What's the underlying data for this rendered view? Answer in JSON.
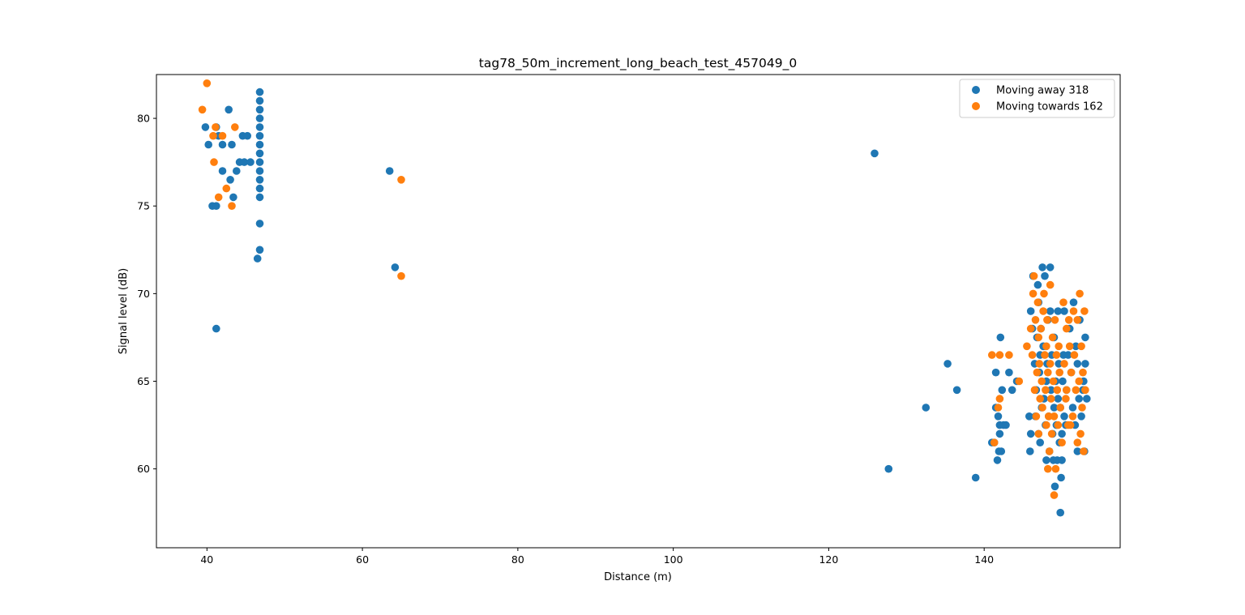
{
  "chart_data": {
    "type": "scatter",
    "title": "tag78_50m_increment_long_beach_test_457049_0",
    "xlabel": "Distance (m)",
    "ylabel": "Signal level (dB)",
    "xlim": [
      33.5,
      157.5
    ],
    "ylim": [
      55.5,
      82.5
    ],
    "xticks": [
      40,
      60,
      80,
      100,
      120,
      140
    ],
    "yticks": [
      60,
      65,
      70,
      75,
      80
    ],
    "grid": false,
    "legend_position": "top-right",
    "series": [
      {
        "name": "Moving away 318",
        "color": "#1f77b4",
        "points": [
          [
            39.8,
            79.5
          ],
          [
            40.2,
            78.5
          ],
          [
            40.7,
            75.0
          ],
          [
            41.2,
            75.0
          ],
          [
            41.2,
            68.0
          ],
          [
            41.5,
            79.0
          ],
          [
            41.2,
            79.5
          ],
          [
            42.0,
            77.0
          ],
          [
            42.0,
            78.5
          ],
          [
            42.8,
            80.5
          ],
          [
            43.0,
            76.5
          ],
          [
            43.2,
            78.5
          ],
          [
            43.4,
            75.5
          ],
          [
            43.8,
            77.0
          ],
          [
            44.2,
            77.5
          ],
          [
            44.6,
            79.0
          ],
          [
            44.8,
            77.5
          ],
          [
            45.2,
            79.0
          ],
          [
            45.6,
            77.5
          ],
          [
            46.5,
            72.0
          ],
          [
            46.8,
            81.5
          ],
          [
            46.8,
            81.0
          ],
          [
            46.8,
            80.5
          ],
          [
            46.8,
            80.0
          ],
          [
            46.8,
            79.5
          ],
          [
            46.8,
            79.0
          ],
          [
            46.8,
            78.5
          ],
          [
            46.8,
            78.0
          ],
          [
            46.8,
            77.5
          ],
          [
            46.8,
            77.0
          ],
          [
            46.8,
            76.5
          ],
          [
            46.8,
            76.0
          ],
          [
            46.8,
            75.5
          ],
          [
            46.8,
            74.0
          ],
          [
            46.8,
            72.5
          ],
          [
            63.5,
            77.0
          ],
          [
            64.2,
            71.5
          ],
          [
            125.9,
            78.0
          ],
          [
            127.7,
            60.0
          ],
          [
            132.5,
            63.5
          ],
          [
            135.3,
            66.0
          ],
          [
            136.5,
            64.5
          ],
          [
            138.9,
            59.5
          ],
          [
            141.0,
            61.5
          ],
          [
            141.3,
            61.5
          ],
          [
            141.5,
            63.5
          ],
          [
            141.5,
            65.5
          ],
          [
            141.7,
            60.5
          ],
          [
            141.8,
            63.0
          ],
          [
            141.9,
            61.0
          ],
          [
            142.0,
            62.0
          ],
          [
            142.0,
            62.5
          ],
          [
            142.1,
            67.5
          ],
          [
            142.2,
            61.0
          ],
          [
            142.3,
            64.5
          ],
          [
            142.5,
            62.5
          ],
          [
            142.8,
            62.5
          ],
          [
            143.2,
            65.5
          ],
          [
            143.6,
            64.5
          ],
          [
            144.2,
            65.0
          ],
          [
            145.8,
            63.0
          ],
          [
            145.9,
            61.0
          ],
          [
            146.0,
            62.0
          ],
          [
            146.0,
            69.0
          ],
          [
            146.2,
            68.0
          ],
          [
            146.3,
            71.0
          ],
          [
            146.5,
            66.0
          ],
          [
            146.6,
            63.0
          ],
          [
            146.7,
            64.5
          ],
          [
            146.8,
            67.5
          ],
          [
            146.9,
            70.5
          ],
          [
            147.0,
            62.0
          ],
          [
            147.0,
            69.5
          ],
          [
            147.1,
            65.5
          ],
          [
            147.2,
            61.5
          ],
          [
            147.2,
            66.5
          ],
          [
            147.3,
            68.0
          ],
          [
            147.4,
            63.5
          ],
          [
            147.5,
            71.5
          ],
          [
            147.6,
            67.0
          ],
          [
            147.7,
            64.0
          ],
          [
            147.8,
            71.0
          ],
          [
            147.9,
            62.5
          ],
          [
            148.0,
            60.5
          ],
          [
            148.0,
            65.0
          ],
          [
            148.1,
            66.0
          ],
          [
            148.2,
            68.5
          ],
          [
            148.3,
            63.0
          ],
          [
            148.4,
            61.0
          ],
          [
            148.5,
            69.0
          ],
          [
            148.5,
            71.5
          ],
          [
            148.6,
            64.5
          ],
          [
            148.7,
            66.5
          ],
          [
            148.8,
            62.0
          ],
          [
            148.9,
            60.5
          ],
          [
            149.0,
            67.5
          ],
          [
            149.0,
            63.5
          ],
          [
            149.1,
            59.0
          ],
          [
            149.2,
            65.0
          ],
          [
            149.3,
            62.5
          ],
          [
            149.4,
            60.5
          ],
          [
            149.5,
            64.0
          ],
          [
            149.5,
            69.0
          ],
          [
            149.6,
            66.0
          ],
          [
            149.7,
            61.5
          ],
          [
            149.8,
            63.5
          ],
          [
            149.8,
            57.5
          ],
          [
            149.9,
            59.5
          ],
          [
            150.0,
            62.0
          ],
          [
            150.0,
            60.5
          ],
          [
            150.1,
            65.0
          ],
          [
            150.2,
            66.5
          ],
          [
            150.3,
            63.0
          ],
          [
            150.3,
            69.0
          ],
          [
            150.5,
            62.5
          ],
          [
            150.6,
            64.5
          ],
          [
            150.8,
            66.5
          ],
          [
            151.0,
            68.0
          ],
          [
            151.2,
            65.5
          ],
          [
            151.4,
            63.5
          ],
          [
            151.5,
            69.5
          ],
          [
            151.7,
            62.5
          ],
          [
            151.8,
            67.0
          ],
          [
            152.0,
            61.0
          ],
          [
            152.0,
            66.0
          ],
          [
            152.2,
            64.0
          ],
          [
            152.3,
            68.5
          ],
          [
            152.5,
            63.0
          ],
          [
            152.7,
            64.5
          ],
          [
            152.9,
            61.0
          ],
          [
            153.0,
            66.0
          ],
          [
            153.2,
            64.0
          ],
          [
            153.0,
            67.5
          ],
          [
            152.8,
            65.0
          ]
        ]
      },
      {
        "name": "Moving towards 162",
        "color": "#ff7f0e",
        "points": [
          [
            39.4,
            80.5
          ],
          [
            40.0,
            82.0
          ],
          [
            40.8,
            79.0
          ],
          [
            40.9,
            77.5
          ],
          [
            41.1,
            79.5
          ],
          [
            41.5,
            75.5
          ],
          [
            42.0,
            79.0
          ],
          [
            42.5,
            76.0
          ],
          [
            43.2,
            75.0
          ],
          [
            43.6,
            79.5
          ],
          [
            65.0,
            76.5
          ],
          [
            65.0,
            71.0
          ],
          [
            141.0,
            66.5
          ],
          [
            141.3,
            61.5
          ],
          [
            141.8,
            63.5
          ],
          [
            142.0,
            64.0
          ],
          [
            142.0,
            66.5
          ],
          [
            143.2,
            66.5
          ],
          [
            144.5,
            65.0
          ],
          [
            145.5,
            67.0
          ],
          [
            146.0,
            68.0
          ],
          [
            146.2,
            66.5
          ],
          [
            146.3,
            70.0
          ],
          [
            146.4,
            71.0
          ],
          [
            146.5,
            64.5
          ],
          [
            146.6,
            68.5
          ],
          [
            146.7,
            63.0
          ],
          [
            146.8,
            65.5
          ],
          [
            146.9,
            69.5
          ],
          [
            147.0,
            62.0
          ],
          [
            147.0,
            67.5
          ],
          [
            147.1,
            66.0
          ],
          [
            147.2,
            64.0
          ],
          [
            147.3,
            68.0
          ],
          [
            147.4,
            65.0
          ],
          [
            147.5,
            63.5
          ],
          [
            147.6,
            69.0
          ],
          [
            147.7,
            70.0
          ],
          [
            147.8,
            66.5
          ],
          [
            147.9,
            64.5
          ],
          [
            148.0,
            62.5
          ],
          [
            148.0,
            67.0
          ],
          [
            148.1,
            68.5
          ],
          [
            148.2,
            65.5
          ],
          [
            148.2,
            60.0
          ],
          [
            148.3,
            63.0
          ],
          [
            148.4,
            61.0
          ],
          [
            148.5,
            66.0
          ],
          [
            148.5,
            70.5
          ],
          [
            148.6,
            64.0
          ],
          [
            148.7,
            62.0
          ],
          [
            148.8,
            67.5
          ],
          [
            148.9,
            65.0
          ],
          [
            149.0,
            63.0
          ],
          [
            149.0,
            58.5
          ],
          [
            149.1,
            68.5
          ],
          [
            149.2,
            60.0
          ],
          [
            149.3,
            66.5
          ],
          [
            149.4,
            64.5
          ],
          [
            149.5,
            62.5
          ],
          [
            149.6,
            67.0
          ],
          [
            149.7,
            65.5
          ],
          [
            149.8,
            63.5
          ],
          [
            150.0,
            61.5
          ],
          [
            150.2,
            69.5
          ],
          [
            150.3,
            66.0
          ],
          [
            150.5,
            64.0
          ],
          [
            150.6,
            68.0
          ],
          [
            150.8,
            62.5
          ],
          [
            151.0,
            67.0
          ],
          [
            151.2,
            65.5
          ],
          [
            151.4,
            63.0
          ],
          [
            151.5,
            69.0
          ],
          [
            151.6,
            66.5
          ],
          [
            151.8,
            64.5
          ],
          [
            152.0,
            68.5
          ],
          [
            152.0,
            61.5
          ],
          [
            152.2,
            65.0
          ],
          [
            152.3,
            70.0
          ],
          [
            152.4,
            62.0
          ],
          [
            152.5,
            67.0
          ],
          [
            152.6,
            63.5
          ],
          [
            152.7,
            65.5
          ],
          [
            152.8,
            61.0
          ],
          [
            152.9,
            69.0
          ],
          [
            153.0,
            64.5
          ],
          [
            150.6,
            64.5
          ],
          [
            150.9,
            68.5
          ],
          [
            151.1,
            62.5
          ]
        ]
      }
    ]
  }
}
